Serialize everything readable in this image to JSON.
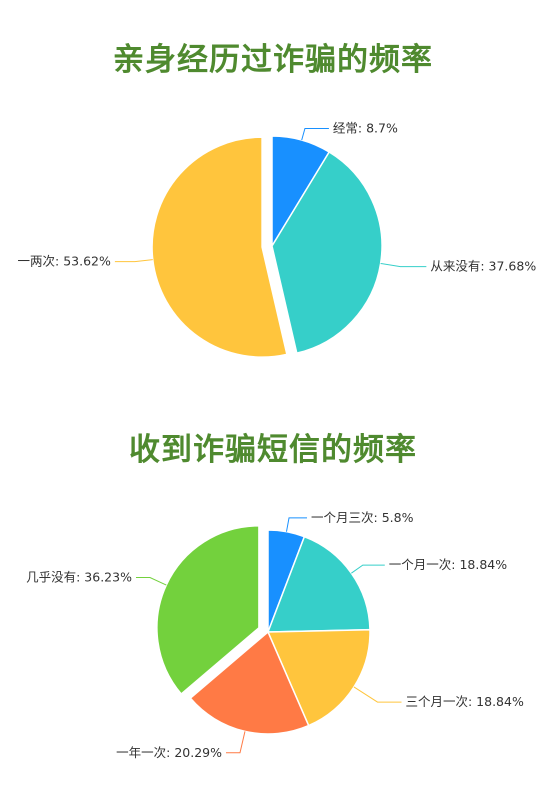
{
  "colors": {
    "title": "#4f8a2f",
    "blue": "#1890ff",
    "teal": "#36cfc9",
    "yellow": "#ffc53d",
    "orange": "#ff7a45",
    "green": "#73d13d"
  },
  "chart_data": [
    {
      "type": "pie",
      "title": "亲身经历过诈骗的频率",
      "slices": [
        {
          "label": "经常",
          "value": 8.7,
          "display": "经常: 8.7%",
          "color": "#1890ff"
        },
        {
          "label": "从来没有",
          "value": 37.68,
          "display": "从来没有: 37.68%",
          "color": "#36cfc9"
        },
        {
          "label": "一两次",
          "value": 53.62,
          "display": "一两次: 53.62%",
          "color": "#ffc53d",
          "exploded": true
        }
      ]
    },
    {
      "type": "pie",
      "title": "收到诈骗短信的频率",
      "slices": [
        {
          "label": "一个月三次",
          "value": 5.8,
          "display": "一个月三次: 5.8%",
          "color": "#1890ff"
        },
        {
          "label": "一个月一次",
          "value": 18.84,
          "display": "一个月一次: 18.84%",
          "color": "#36cfc9"
        },
        {
          "label": "三个月一次",
          "value": 18.84,
          "display": "三个月一次: 18.84%",
          "color": "#ffc53d"
        },
        {
          "label": "一年一次",
          "value": 20.29,
          "display": "一年一次: 20.29%",
          "color": "#ff7a45"
        },
        {
          "label": "几乎没有",
          "value": 36.23,
          "display": "几乎没有: 36.23%",
          "color": "#73d13d",
          "exploded": true
        }
      ]
    }
  ]
}
